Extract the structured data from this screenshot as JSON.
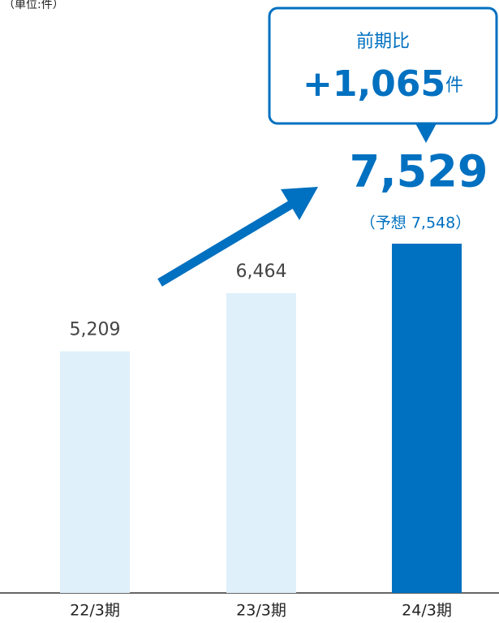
{
  "chart_data": {
    "type": "bar",
    "unit_label": "（単位:件）",
    "categories": [
      "22/3期",
      "23/3期",
      "24/3期"
    ],
    "values": [
      5209,
      6464,
      7529
    ],
    "value_labels": [
      "5,209",
      "6,464",
      "7,529"
    ],
    "colors": [
      "#dff0fb",
      "#dff0fb",
      "#0070c0"
    ],
    "forecast_label": "（予想  7,548）",
    "callout": {
      "title": "前期比",
      "value": "+1,065",
      "unit": "件"
    }
  }
}
